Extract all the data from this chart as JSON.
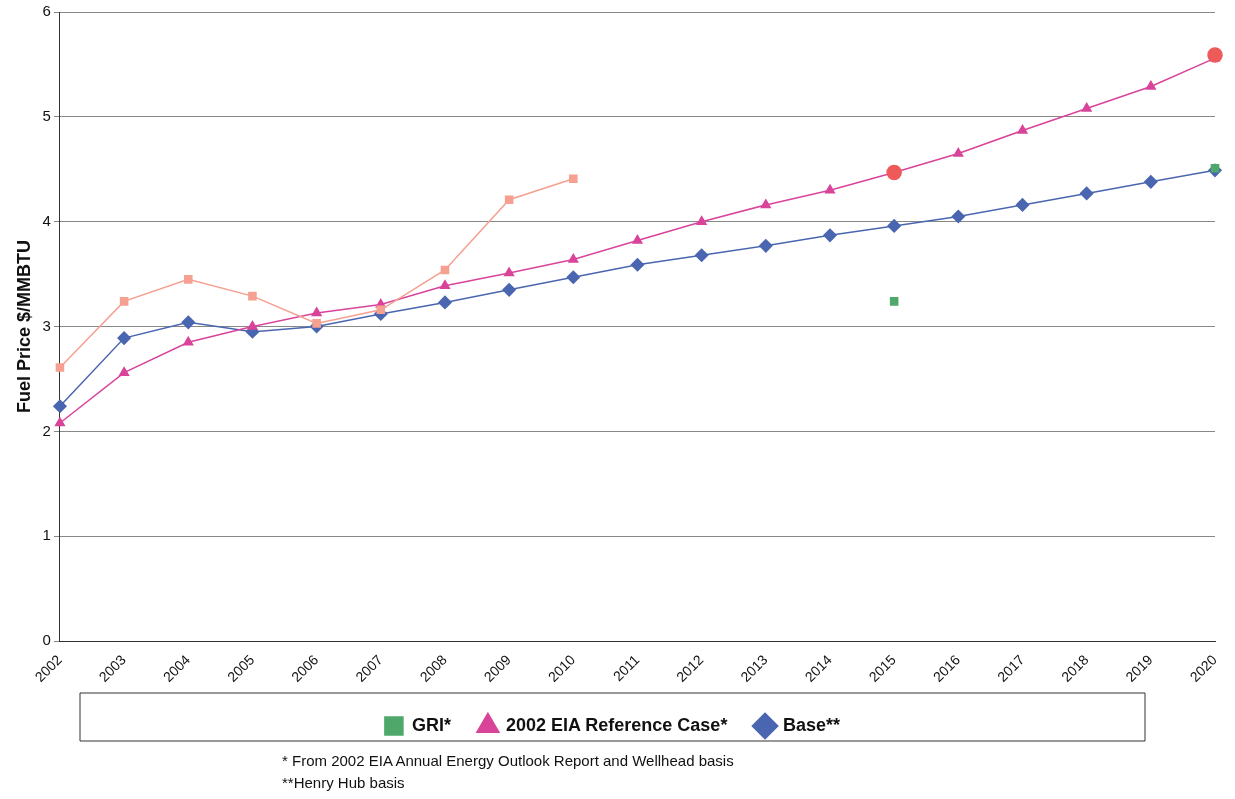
{
  "chart_data": {
    "type": "line",
    "ylabel": "Fuel Price $/MMBTU",
    "categories": [
      "2002",
      "2003",
      "2004",
      "2005",
      "2006",
      "2007",
      "2008",
      "2009",
      "2010",
      "2011",
      "2012",
      "2013",
      "2014",
      "2015",
      "2016",
      "2017",
      "2018",
      "2019",
      "2020"
    ],
    "series": [
      {
        "name": "Base**",
        "color": "#4a66b0",
        "marker": "diamond",
        "values": [
          2.24,
          2.89,
          3.04,
          2.95,
          3.0,
          3.12,
          3.23,
          3.35,
          3.47,
          3.59,
          3.68,
          3.77,
          3.87,
          3.96,
          4.05,
          4.16,
          4.27,
          4.38,
          4.49
        ]
      },
      {
        "name": "2002 EIA Reference Case*",
        "color": "#d9449a",
        "marker": "triangle",
        "values": [
          2.08,
          2.56,
          2.85,
          3.0,
          3.13,
          3.21,
          3.39,
          3.51,
          3.64,
          3.82,
          4.0,
          4.16,
          4.3,
          4.47,
          4.65,
          4.87,
          5.08,
          5.29,
          5.56
        ]
      },
      {
        "name": "GRI*",
        "type": "scatter",
        "color": "#4fa86a",
        "marker": "square",
        "values": [
          null,
          null,
          null,
          null,
          null,
          null,
          null,
          null,
          null,
          null,
          null,
          null,
          null,
          3.24,
          null,
          null,
          null,
          null,
          4.51
        ]
      },
      {
        "type": "scatter",
        "color": "#ee5a5a",
        "marker": "circle",
        "values": [
          null,
          null,
          null,
          null,
          null,
          null,
          null,
          null,
          null,
          null,
          null,
          null,
          null,
          4.47,
          null,
          null,
          null,
          null,
          5.59
        ]
      },
      {
        "color": "#f5a090",
        "marker": "square",
        "values": [
          2.61,
          3.24,
          3.45,
          3.29,
          3.03,
          3.16,
          3.54,
          4.21,
          4.41,
          null,
          null,
          null,
          null,
          null,
          null,
          null,
          null,
          null,
          null
        ]
      }
    ],
    "ylim": [
      0,
      6
    ],
    "yticks": [
      0,
      1,
      2,
      3,
      4,
      5,
      6
    ],
    "grid": "y",
    "legend": "bottom",
    "annotations": [
      "* From 2002 EIA Annual Energy Outlook Report and Wellhead basis",
      "**Henry Hub basis"
    ]
  }
}
